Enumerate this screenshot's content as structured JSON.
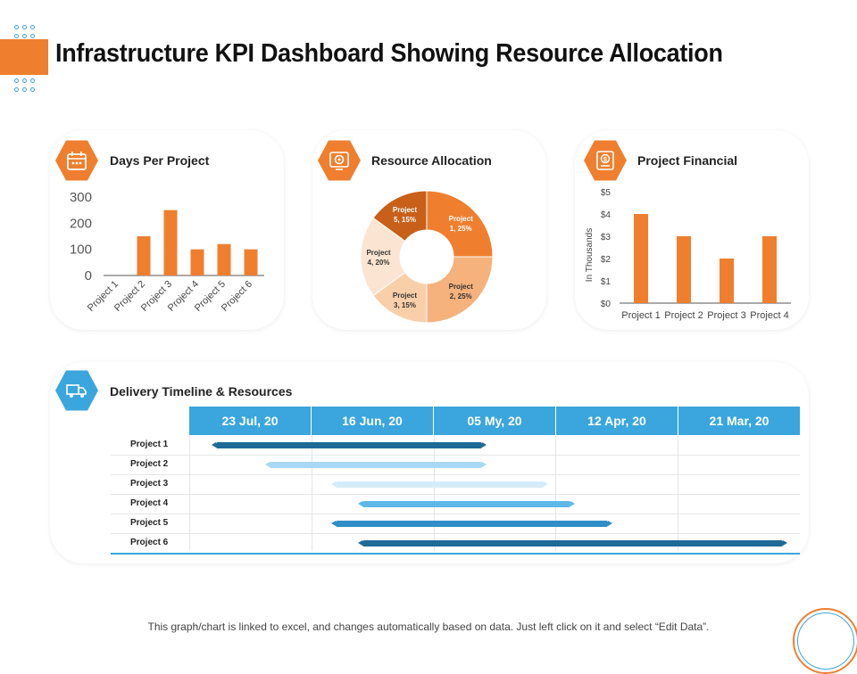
{
  "page": {
    "title": "Infrastructure KPI Dashboard Showing Resource Allocation",
    "footer": "This graph/chart is linked to excel, and changes automatically based on data. Just left click on it and select “Edit Data”."
  },
  "colors": {
    "orange": "#ef7f2e",
    "blue": "#3aa6dd"
  },
  "icons": {
    "days": "calendar-icon",
    "resource": "target-icon",
    "financial": "dollar-document-icon",
    "delivery": "truck-icon"
  },
  "chart_data": [
    {
      "type": "bar",
      "title": "Days Per Project",
      "categories": [
        "Project 1",
        "Project 2",
        "Project 3",
        "Project 4",
        "Project 5",
        "Project 6"
      ],
      "values": [
        0,
        150,
        250,
        100,
        120,
        100
      ],
      "ylim": [
        0,
        300
      ],
      "yticks": [
        "0",
        "100",
        "200",
        "300"
      ]
    },
    {
      "type": "pie",
      "title": "Resource Allocation",
      "slices": [
        {
          "line1": "Project",
          "line2": "1, 25%",
          "value": 25,
          "color": "#ef7f2e",
          "textColor": "#ffffff"
        },
        {
          "line1": "Project",
          "line2": "2, 25%",
          "value": 25,
          "color": "#f5b27c",
          "textColor": "#333333"
        },
        {
          "line1": "Project",
          "line2": "3, 15%",
          "value": 15,
          "color": "#f9cfa9",
          "textColor": "#333333"
        },
        {
          "line1": "Project",
          "line2": "4, 20%",
          "value": 20,
          "color": "#fbe5d2",
          "textColor": "#333333"
        },
        {
          "line1": "Project",
          "line2": "5, 15%",
          "value": 15,
          "color": "#c8601a",
          "textColor": "#ffffff"
        }
      ]
    },
    {
      "type": "bar",
      "title": "Project Financial",
      "ylabel": "In Thousands",
      "categories": [
        "Project 1",
        "Project 2",
        "Project 3",
        "Project 4"
      ],
      "values": [
        4,
        3,
        2,
        3
      ],
      "ylim": [
        0,
        5
      ],
      "yticks": [
        "$0",
        "$1",
        "$2",
        "$3",
        "$4",
        "$5"
      ]
    },
    {
      "type": "gantt",
      "title": "Delivery Timeline & Resources",
      "columns": [
        "23 Jul, 20",
        "16 Jun, 20",
        "05 My, 20",
        "12 Apr, 20",
        "21 Mar, 20"
      ],
      "rows": [
        {
          "label": "Project 1",
          "start": 0.22,
          "end": 2.4,
          "color": "#1e6a97"
        },
        {
          "label": "Project 2",
          "start": 0.66,
          "end": 2.4,
          "color": "#a9d8f2"
        },
        {
          "label": "Project 3",
          "start": 1.2,
          "end": 2.9,
          "color": "#d4ecfa"
        },
        {
          "label": "Project 4",
          "start": 1.42,
          "end": 3.12,
          "color": "#5fb8e8"
        },
        {
          "label": "Project 5",
          "start": 1.2,
          "end": 3.43,
          "color": "#2f8ec8"
        },
        {
          "label": "Project 6",
          "start": 1.42,
          "end": 4.86,
          "color": "#1e6a97"
        }
      ]
    }
  ]
}
